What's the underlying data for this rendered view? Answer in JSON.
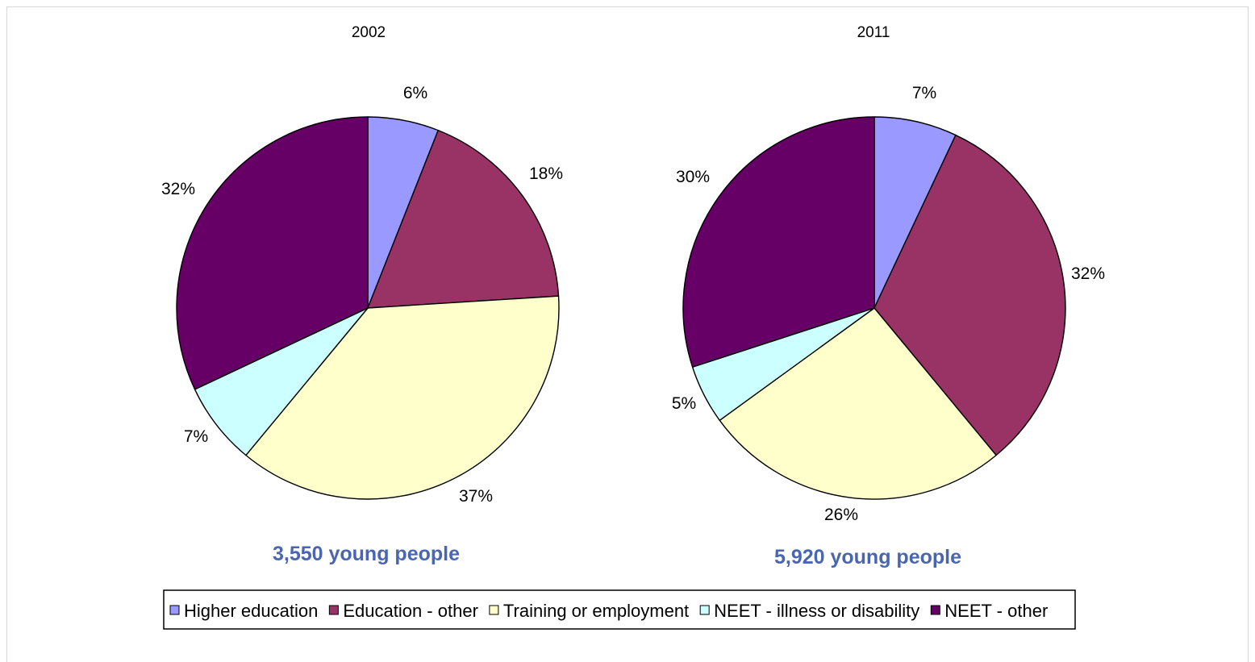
{
  "chart_data": [
    {
      "type": "pie",
      "title": "2002",
      "caption": "3,550 young people",
      "slices": [
        {
          "name": "Higher education",
          "value": 6,
          "label": "6%",
          "color": "#9999ff"
        },
        {
          "name": "Education - other",
          "value": 18,
          "label": "18%",
          "color": "#993366"
        },
        {
          "name": "Training or employment",
          "value": 37,
          "label": "37%",
          "color": "#ffffcc"
        },
        {
          "name": "NEET - illness or disability",
          "value": 7,
          "label": "7%",
          "color": "#ccffff"
        },
        {
          "name": "NEET - other",
          "value": 32,
          "label": "32%",
          "color": "#660066"
        }
      ]
    },
    {
      "type": "pie",
      "title": "2011",
      "caption": "5,920 young people",
      "slices": [
        {
          "name": "Higher education",
          "value": 7,
          "label": "7%",
          "color": "#9999ff"
        },
        {
          "name": "Education - other",
          "value": 32,
          "label": "32%",
          "color": "#993366"
        },
        {
          "name": "Training or employment",
          "value": 26,
          "label": "26%",
          "color": "#ffffcc"
        },
        {
          "name": "NEET - illness or disability",
          "value": 5,
          "label": "5%",
          "color": "#ccffff"
        },
        {
          "name": "NEET - other",
          "value": 30,
          "label": "30%",
          "color": "#660066"
        }
      ]
    }
  ],
  "legend": {
    "placement": "bottom",
    "items": [
      {
        "label": "Higher education",
        "color": "#9999ff"
      },
      {
        "label": "Education - other",
        "color": "#993366"
      },
      {
        "label": "Training or employment",
        "color": "#ffffcc"
      },
      {
        "label": "NEET - illness or disability",
        "color": "#ccffff"
      },
      {
        "label": "NEET - other",
        "color": "#660066"
      }
    ]
  }
}
